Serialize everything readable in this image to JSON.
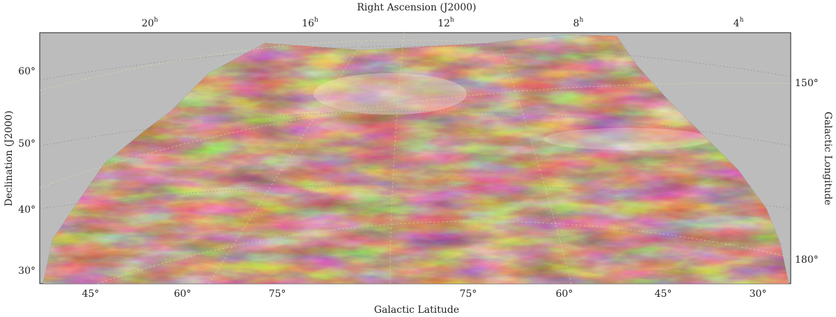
{
  "title_top": "Right Ascension (J2000)",
  "title_bottom": "Galactic Latitude",
  "title_left": "Declination (J2000)",
  "title_right": "Galactic Longitude",
  "top_ticks": [
    {
      "value": "20",
      "unit": "h"
    },
    {
      "value": "16",
      "unit": "h"
    },
    {
      "value": "12",
      "unit": "h"
    },
    {
      "value": "8",
      "unit": "h"
    },
    {
      "value": "4",
      "unit": "h"
    }
  ],
  "left_ticks": [
    "60°",
    "50°",
    "40°",
    "30°"
  ],
  "right_ticks": [
    "150°",
    "180°"
  ],
  "bottom_ticks": [
    "45°",
    "60°",
    "75°",
    "75°",
    "60°",
    "45°",
    "30°"
  ]
}
